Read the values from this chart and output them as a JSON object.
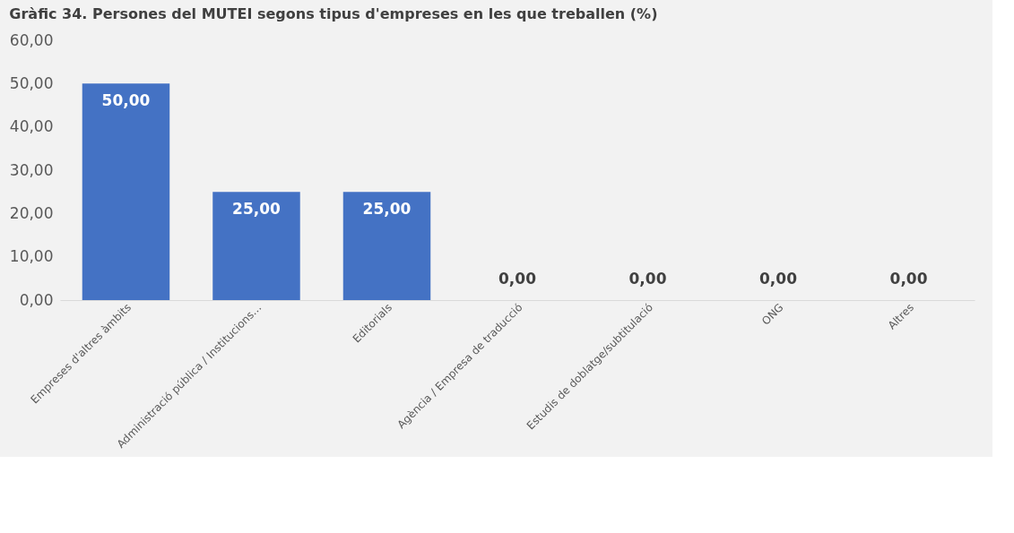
{
  "chart_data": {
    "type": "bar",
    "title": "Gràfic 34. Persones del MUTEI segons tipus d'empreses en les que treballen (%)",
    "categories": [
      "Empreses d'altres àmbits",
      "Administració pública / Institucions…",
      "Editorials",
      "Agència / Empresa de traducció",
      "Estudis de doblatge/subtitulació",
      "ONG",
      "Altres"
    ],
    "values": [
      50,
      25,
      25,
      0,
      0,
      0,
      0
    ],
    "value_labels": [
      "50,00",
      "25,00",
      "25,00",
      "0,00",
      "0,00",
      "0,00",
      "0,00"
    ],
    "color": "#4472c4",
    "ylim": [
      0,
      60
    ],
    "yticks": [
      {
        "value": 0,
        "label": "0,00"
      },
      {
        "value": 10,
        "label": "10,00"
      },
      {
        "value": 20,
        "label": "20,00"
      },
      {
        "value": 30,
        "label": "30,00"
      },
      {
        "value": 40,
        "label": "40,00"
      },
      {
        "value": 50,
        "label": "50,00"
      },
      {
        "value": 60,
        "label": "60,00"
      }
    ],
    "grid": false
  }
}
